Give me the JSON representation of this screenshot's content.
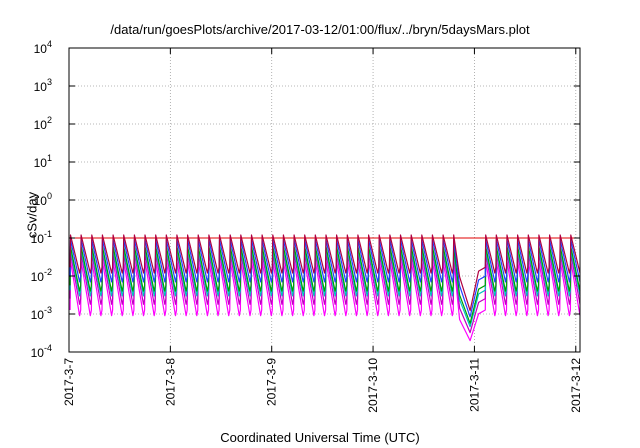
{
  "chart_data": {
    "type": "line",
    "title": "/data/run/goesPlots/archive/2017-03-12/01:00/flux/../bryn/5daysMars.plot",
    "xlabel": "Coordinated Universal Time (UTC)",
    "ylabel": "cSv/day",
    "yscale": "log",
    "ylim": [
      0.0001,
      10000
    ],
    "y_ticks": [
      {
        "mant": "10",
        "exp": "-4"
      },
      {
        "mant": "10",
        "exp": "-3"
      },
      {
        "mant": "10",
        "exp": "-2"
      },
      {
        "mant": "10",
        "exp": "-1"
      },
      {
        "mant": "10",
        "exp": "0"
      },
      {
        "mant": "10",
        "exp": "1"
      },
      {
        "mant": "10",
        "exp": "2"
      },
      {
        "mant": "10",
        "exp": "3"
      },
      {
        "mant": "10",
        "exp": "4"
      }
    ],
    "x_ticks": [
      "2017-3-7",
      "2017-3-8",
      "2017-3-9",
      "2017-3-10",
      "2017-3-11",
      "2017-3-12"
    ],
    "xlim": [
      "2017-03-07T00:00",
      "2017-03-12T01:00"
    ],
    "reference_line": 0.1,
    "sawtooth_cycles": 48,
    "gap": {
      "start": "2017-03-10T20:30",
      "end": "2017-03-11T01:00",
      "dip_min": 0.0002
    },
    "grid": true,
    "series": [
      {
        "color": "#ff00ff",
        "peak": 0.025,
        "trough": 0.0009
      },
      {
        "color": "#c000c0",
        "peak": 0.04,
        "trough": 0.0018
      },
      {
        "color": "#00c0c0",
        "peak": 0.05,
        "trough": 0.003
      },
      {
        "color": "#00a000",
        "peak": 0.06,
        "trough": 0.004
      },
      {
        "color": "#1f3fff",
        "peak": 0.09,
        "trough": 0.007
      },
      {
        "color": "#b00040",
        "peak": 0.12,
        "trough": 0.012
      }
    ]
  }
}
